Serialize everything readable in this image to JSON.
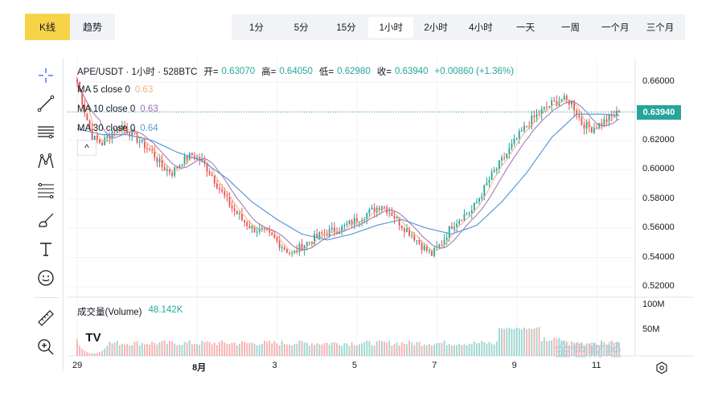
{
  "mode_tabs": [
    {
      "label": "K线",
      "active": true
    },
    {
      "label": "趋势",
      "active": false
    }
  ],
  "intervals": [
    {
      "label": "1分",
      "active": false
    },
    {
      "label": "5分",
      "active": false
    },
    {
      "label": "15分",
      "active": false
    },
    {
      "label": "1小时",
      "active": true
    },
    {
      "label": "2小时",
      "active": false
    },
    {
      "label": "4小时",
      "active": false
    },
    {
      "label": "一天",
      "active": false
    },
    {
      "label": "一周",
      "active": false
    },
    {
      "label": "一个月",
      "active": false
    },
    {
      "label": "三个月",
      "active": false
    }
  ],
  "legend": {
    "symbol": "APE/USDT · 1小时 · 528BTC",
    "open_label": "开=",
    "open": "0.63070",
    "high_label": "高=",
    "high": "0.64050",
    "low_label": "低=",
    "low": "0.62980",
    "close_label": "收=",
    "close": "0.63940",
    "change": "+0.00860 (+1.36%)",
    "ma5_label": "MA 5 close 0",
    "ma5_value": "0.63",
    "ma5_color": "#f0b27a",
    "ma10_label": "MA 10 close 0",
    "ma10_value": "0.63",
    "ma10_color": "#9c6fb6",
    "ma30_label": "MA 30 close 0",
    "ma30_value": "0.64",
    "ma30_color": "#5b9bd5"
  },
  "colors": {
    "up": "#26a69a",
    "down": "#ef5350",
    "accent": "#f7d348"
  },
  "price_tag": "0.63940",
  "collapse_symbol": "^",
  "volume_legend": {
    "label": "成交量(Volume)",
    "value": "48.142K"
  },
  "logo_text": "TV",
  "watermark": "金色财经",
  "icons": [
    "crosshair-icon",
    "trend-line-icon",
    "horizontal-lines-icon",
    "pattern-icon",
    "fib-icon",
    "brush-icon",
    "text-icon",
    "emoji-icon",
    "ruler-icon",
    "zoom-icon",
    "settings-icon"
  ],
  "chart_data": {
    "type": "candlestick",
    "y_ticks": [
      "0.66000",
      "0.64000",
      "0.62000",
      "0.60000",
      "0.58000",
      "0.56000",
      "0.54000",
      "0.52000"
    ],
    "ylim": [
      0.515,
      0.665
    ],
    "volume_ticks": [
      "100M",
      "50M"
    ],
    "volume_ylim": [
      0,
      100
    ],
    "x_ticks": [
      {
        "label": "29",
        "pos": 0
      },
      {
        "label": "8月",
        "pos": 48
      },
      {
        "label": "3",
        "pos": 80
      },
      {
        "label": "5",
        "pos": 112
      },
      {
        "label": "7",
        "pos": 144
      },
      {
        "label": "9",
        "pos": 176
      },
      {
        "label": "11",
        "pos": 208
      }
    ],
    "bar_count": 218,
    "close_path": [
      [
        0,
        0.66
      ],
      [
        3,
        0.64
      ],
      [
        6,
        0.622
      ],
      [
        10,
        0.618
      ],
      [
        14,
        0.626
      ],
      [
        18,
        0.63
      ],
      [
        22,
        0.624
      ],
      [
        26,
        0.618
      ],
      [
        30,
        0.612
      ],
      [
        34,
        0.602
      ],
      [
        38,
        0.598
      ],
      [
        42,
        0.606
      ],
      [
        46,
        0.61
      ],
      [
        50,
        0.606
      ],
      [
        54,
        0.596
      ],
      [
        58,
        0.584
      ],
      [
        62,
        0.574
      ],
      [
        66,
        0.566
      ],
      [
        70,
        0.56
      ],
      [
        74,
        0.558
      ],
      [
        78,
        0.554
      ],
      [
        82,
        0.548
      ],
      [
        86,
        0.542
      ],
      [
        90,
        0.548
      ],
      [
        94,
        0.552
      ],
      [
        98,
        0.556
      ],
      [
        102,
        0.558
      ],
      [
        106,
        0.56
      ],
      [
        110,
        0.564
      ],
      [
        114,
        0.568
      ],
      [
        118,
        0.572
      ],
      [
        122,
        0.576
      ],
      [
        126,
        0.57
      ],
      [
        130,
        0.562
      ],
      [
        134,
        0.556
      ],
      [
        138,
        0.548
      ],
      [
        142,
        0.542
      ],
      [
        146,
        0.55
      ],
      [
        150,
        0.562
      ],
      [
        154,
        0.568
      ],
      [
        158,
        0.572
      ],
      [
        162,
        0.584
      ],
      [
        166,
        0.596
      ],
      [
        170,
        0.606
      ],
      [
        174,
        0.616
      ],
      [
        178,
        0.626
      ],
      [
        182,
        0.634
      ],
      [
        186,
        0.64
      ],
      [
        190,
        0.645
      ],
      [
        194,
        0.648
      ],
      [
        198,
        0.646
      ],
      [
        202,
        0.632
      ],
      [
        206,
        0.628
      ],
      [
        210,
        0.632
      ],
      [
        214,
        0.636
      ],
      [
        217,
        0.6394
      ]
    ],
    "ma30_path": [
      [
        0,
        0.628
      ],
      [
        10,
        0.624
      ],
      [
        20,
        0.624
      ],
      [
        30,
        0.62
      ],
      [
        40,
        0.612
      ],
      [
        50,
        0.606
      ],
      [
        60,
        0.594
      ],
      [
        70,
        0.578
      ],
      [
        80,
        0.566
      ],
      [
        90,
        0.556
      ],
      [
        100,
        0.552
      ],
      [
        110,
        0.556
      ],
      [
        120,
        0.562
      ],
      [
        130,
        0.566
      ],
      [
        140,
        0.56
      ],
      [
        150,
        0.556
      ],
      [
        160,
        0.562
      ],
      [
        170,
        0.578
      ],
      [
        180,
        0.598
      ],
      [
        190,
        0.622
      ],
      [
        200,
        0.638
      ],
      [
        210,
        0.638
      ],
      [
        217,
        0.637
      ]
    ]
  }
}
